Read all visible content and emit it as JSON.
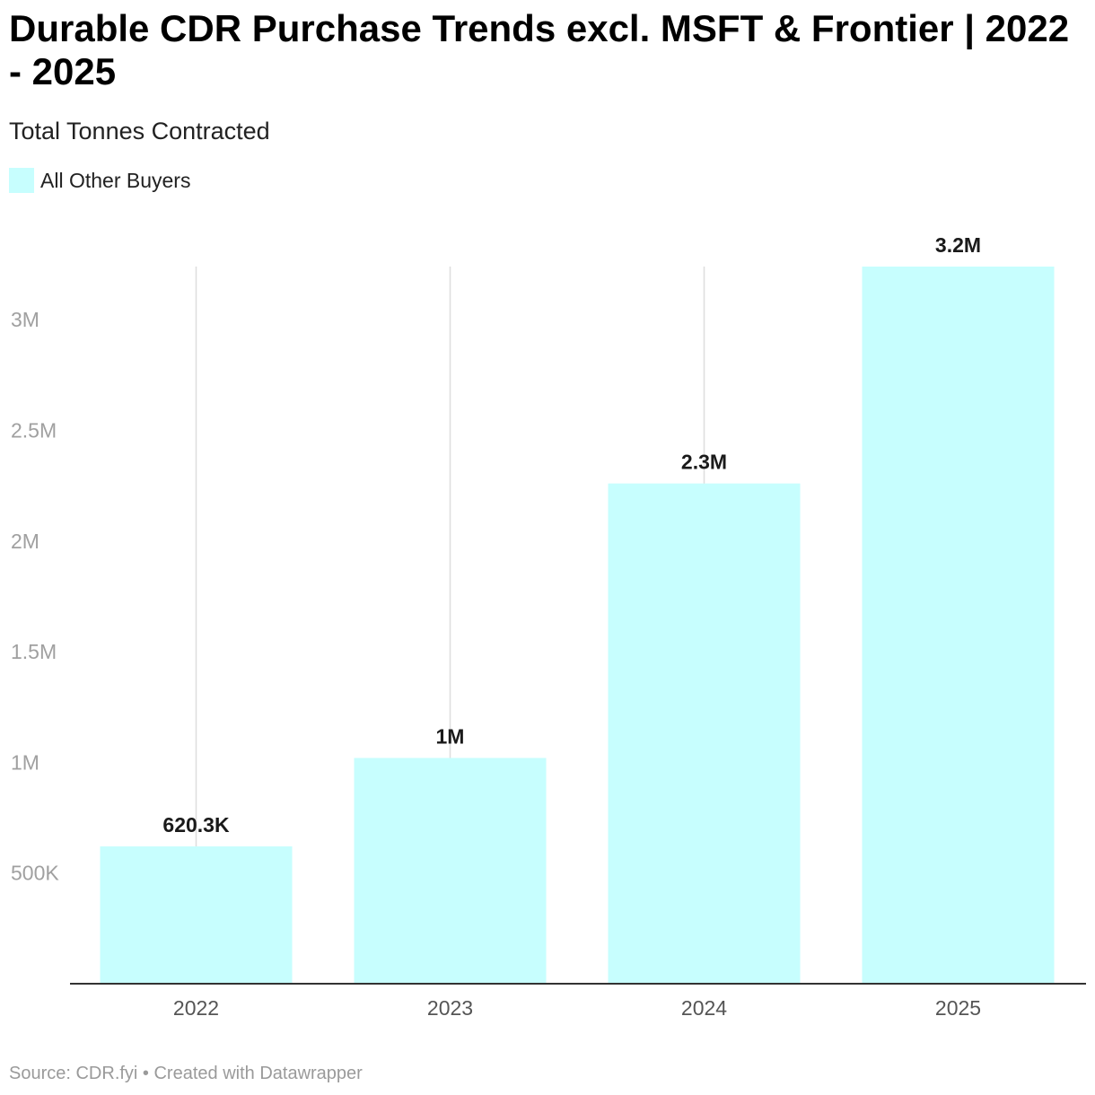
{
  "header": {
    "title": "Durable CDR Purchase Trends excl. MSFT & Frontier | 2022 - 2025",
    "subtitle": "Total Tonnes Contracted"
  },
  "legend": {
    "label": "All Other Buyers"
  },
  "footer": {
    "text": "Source: CDR.fyi • Created with Datawrapper"
  },
  "colors": {
    "bar": "#c7fefe",
    "gridline": "#dedede",
    "baseline": "#333333"
  },
  "chart_data": {
    "type": "bar",
    "title": "Durable CDR Purchase Trends excl. MSFT & Frontier | 2022 - 2025",
    "subtitle": "Total Tonnes Contracted",
    "xlabel": "",
    "ylabel": "",
    "categories": [
      "2022",
      "2023",
      "2024",
      "2025"
    ],
    "series": [
      {
        "name": "All Other Buyers",
        "values": [
          620300,
          1020000,
          2260000,
          3240000
        ],
        "labels": [
          "620.3K",
          "1M",
          "2.3M",
          "3.2M"
        ]
      }
    ],
    "ylim": [
      0,
      3240000
    ],
    "yticks": [
      {
        "value": 500000,
        "label": "500K"
      },
      {
        "value": 1000000,
        "label": "1M"
      },
      {
        "value": 1500000,
        "label": "1.5M"
      },
      {
        "value": 2000000,
        "label": "2M"
      },
      {
        "value": 2500000,
        "label": "2.5M"
      },
      {
        "value": 3000000,
        "label": "3M"
      }
    ],
    "grid": "vertical lines at category centers",
    "legend_position": "top-left"
  }
}
